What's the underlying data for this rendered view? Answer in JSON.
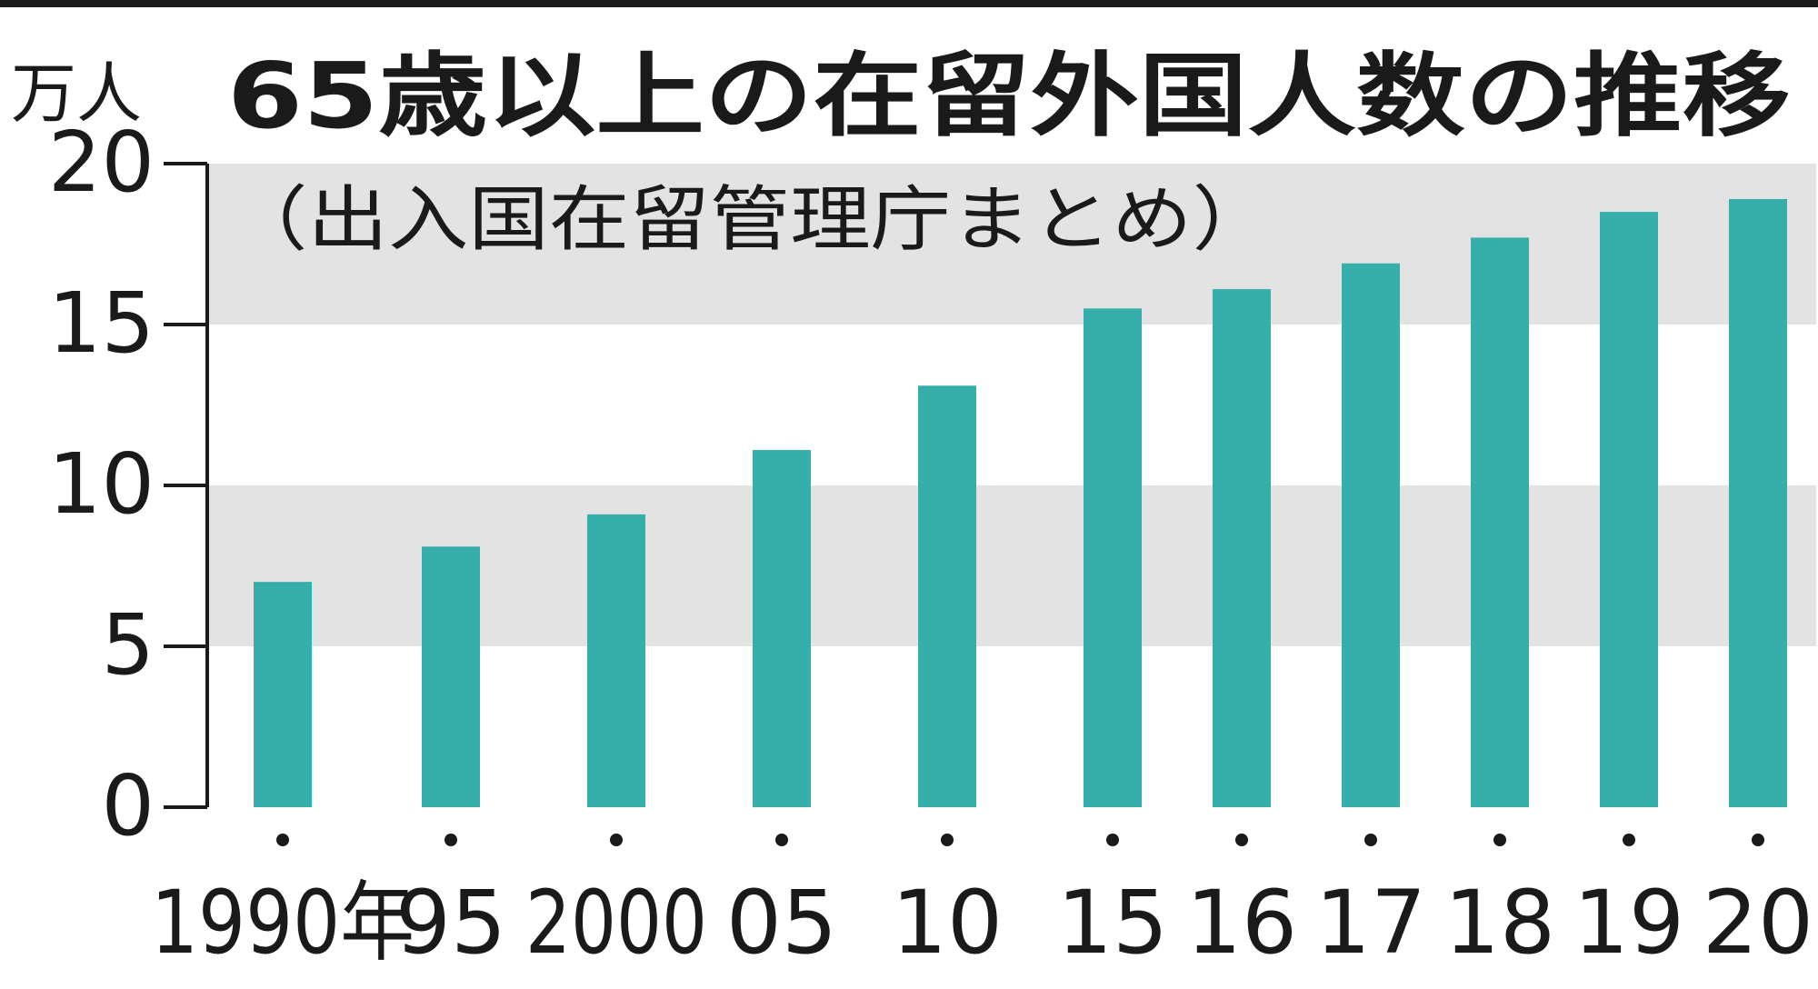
{
  "chart_data": {
    "type": "bar",
    "title": "65歳以上の在留外国人数の推移",
    "subtitle": "（出入国在留管理庁まとめ）",
    "unit_label": "万人",
    "categories": [
      "1990年",
      "95",
      "2000",
      "05",
      "10",
      "15",
      "16",
      "17",
      "18",
      "19",
      "20"
    ],
    "values": [
      7.0,
      8.1,
      9.1,
      11.1,
      13.1,
      15.5,
      16.1,
      16.9,
      17.7,
      18.5,
      18.9
    ],
    "y_ticks": [
      "0",
      "5",
      "10",
      "15",
      "20"
    ],
    "ylim": [
      0,
      20
    ],
    "bands": [
      [
        5,
        10
      ],
      [
        15,
        20
      ]
    ],
    "grid": false,
    "colors": {
      "bar": "#36aea9",
      "band": "#e3e3e3",
      "axis": "#1a1a1a",
      "text": "#1a1a1a"
    }
  }
}
